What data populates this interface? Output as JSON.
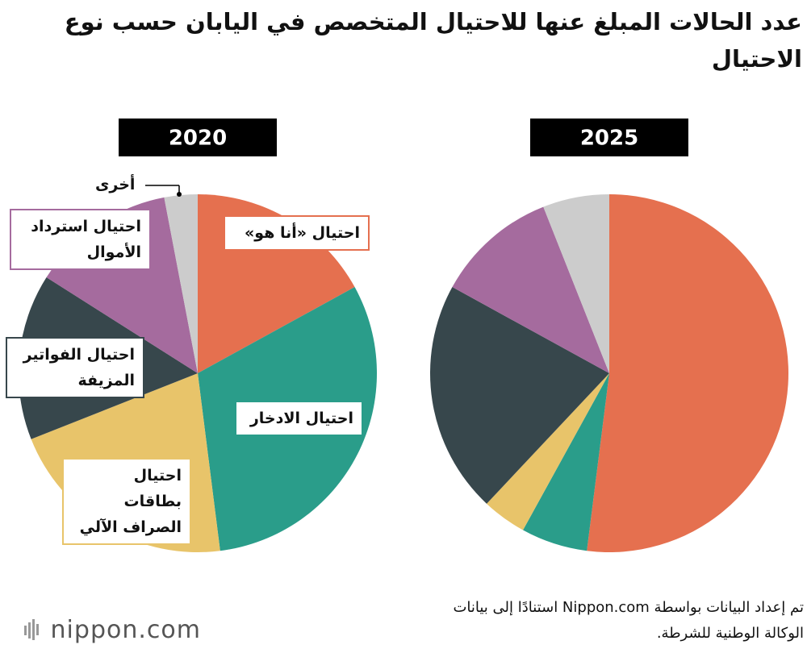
{
  "title": "عدد الحالات المبلغ عنها للاحتيال المتخصص في اليابان حسب نوع الاحتيال",
  "source": "تم إعداد البيانات بواسطة Nippon.com استنادًا إلى بيانات الوكالة الوطنية للشرطة.",
  "logo": "nippon.com",
  "chart_data": [
    {
      "type": "pie",
      "title": "2020",
      "categories": [
        "احتيال «أنا هو»",
        "احتيال الادخار",
        "احتيال بطاقات الصراف الآلي",
        "احتيال الفواتير المزيفة",
        "احتيال استرداد الأموال",
        "أخرى"
      ],
      "values": [
        17,
        31,
        21,
        15,
        13,
        3
      ],
      "colors": [
        "#e5704f",
        "#2a9d8a",
        "#e8c46a",
        "#37474c",
        "#a56b9e",
        "#cccccc"
      ]
    },
    {
      "type": "pie",
      "title": "2025",
      "values": [
        52,
        6,
        4,
        21,
        11,
        6
      ],
      "colors": [
        "#e5704f",
        "#2a9d8a",
        "#e8c46a",
        "#37474c",
        "#a56b9e",
        "#cccccc"
      ]
    }
  ]
}
